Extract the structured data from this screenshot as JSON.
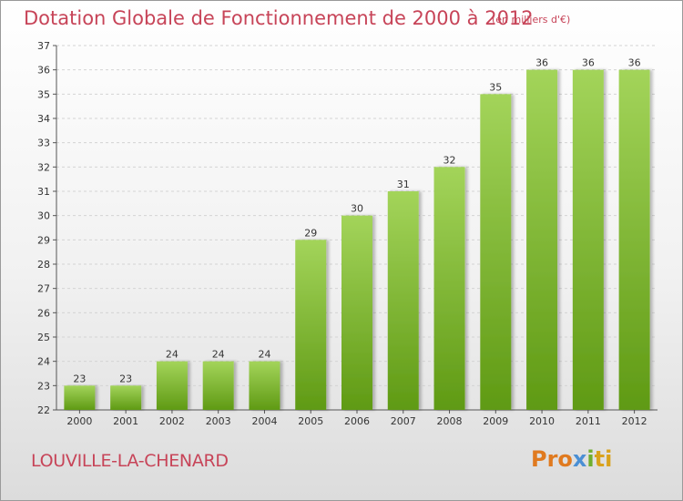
{
  "title": "Dotation Globale de Fonctionnement de 2000 à 2012",
  "unit_label": "(en milliers d'€)",
  "commune": "LOUVILLE-LA-CHENARD",
  "logo": {
    "p1": "Pro",
    "p2": "x",
    "p3": "i",
    "p4": "ti"
  },
  "colors": {
    "bar_light": "#a3d45a",
    "bar_dark": "#5f9a14",
    "title": "#c74458"
  },
  "chart_data": {
    "type": "bar",
    "categories": [
      "2000",
      "2001",
      "2002",
      "2003",
      "2004",
      "2005",
      "2006",
      "2007",
      "2008",
      "2009",
      "2010",
      "2011",
      "2012"
    ],
    "values": [
      23,
      23,
      24,
      24,
      24,
      29,
      30,
      31,
      32,
      35,
      36,
      36,
      36
    ],
    "ylim": [
      22,
      37
    ],
    "yticks": [
      22,
      23,
      24,
      25,
      26,
      27,
      28,
      29,
      30,
      31,
      32,
      33,
      34,
      35,
      36,
      37
    ],
    "grid": true,
    "xlabel": "",
    "ylabel": ""
  }
}
